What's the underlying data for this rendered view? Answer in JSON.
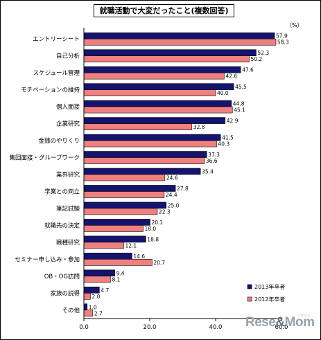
{
  "chart_data": {
    "type": "bar",
    "orientation": "horizontal",
    "title": "就職活動で大変だったこと(複数回答)",
    "unit_label": "（%）",
    "categories": [
      "エントリーシート",
      "自己分析",
      "スケジュール管理",
      "モチベーションの維持",
      "個人面接",
      "企業研究",
      "金銭のやりくり",
      "集団面接・グループワーク",
      "業界研究",
      "学業との両立",
      "筆記試験",
      "就職先の決定",
      "職種研究",
      "セミナー申し込み・参加",
      "OB・OG訪問",
      "家族の説得",
      "その他"
    ],
    "series": [
      {
        "name": "2013年卒者",
        "color": "#14146e",
        "values": [
          57.9,
          52.3,
          47.6,
          45.5,
          44.8,
          42.9,
          41.5,
          37.3,
          35.4,
          27.8,
          25.0,
          20.1,
          18.8,
          14.6,
          9.4,
          4.7,
          1.0
        ]
      },
      {
        "name": "2012年卒者",
        "color": "#f08080",
        "values": [
          58.3,
          50.2,
          42.6,
          40.0,
          45.1,
          32.8,
          40.3,
          36.6,
          24.6,
          24.4,
          22.3,
          18.0,
          12.1,
          20.7,
          8.1,
          2.0,
          2.7
        ]
      }
    ],
    "value_labels": [
      [
        "57.9",
        "52.3",
        "47.6",
        "45.5",
        "44.8",
        "42.9",
        "41.5",
        "37.3",
        "35.4",
        "27.8",
        "25.0",
        "20.1",
        "18.8",
        "14.6",
        "9.4",
        "4.7",
        "1.0"
      ],
      [
        "58.3",
        "50.2",
        "42.6",
        "40.0",
        "45.1",
        "32.8",
        "40.3",
        "36.6",
        "24.6",
        "24.4",
        "22.3",
        "18.0",
        "12.1",
        "20.7",
        "8.1",
        "2.0",
        "2.7"
      ]
    ],
    "x_ticks": [
      "0.0",
      "20.0",
      "40.0",
      "60.0"
    ],
    "xlim": [
      0,
      60
    ],
    "grid": false,
    "legend_position": "bottom-right"
  },
  "watermark": {
    "text_main": "Rese",
    "text_dot": "&",
    "text_end": "Mom",
    "small": "リセマム"
  }
}
